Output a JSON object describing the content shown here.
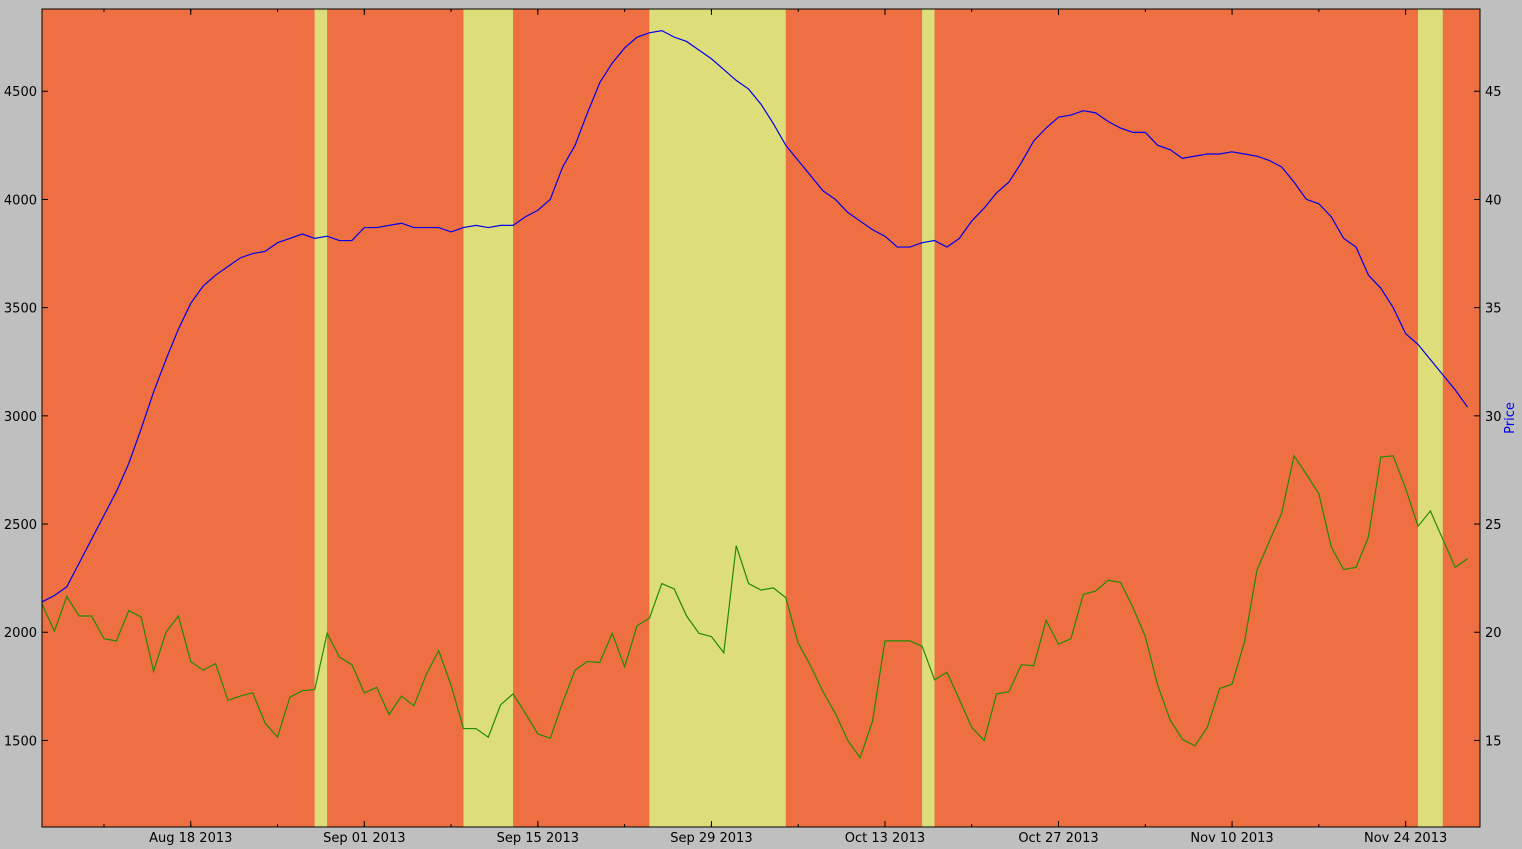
{
  "chart_data": {
    "type": "line",
    "title": "",
    "xlabel": "",
    "ylabel_left": "",
    "ylabel_right": "Price",
    "background_color": "#bfbfbf",
    "plot_border_color": "#000000",
    "grid": false,
    "legend": "none",
    "x_range": [
      "2013-08-06",
      "2013-11-30"
    ],
    "ylim_left": [
      1100,
      4880
    ],
    "ylim_right": [
      11,
      48.8
    ],
    "x_tick_labels": [
      "Aug 18 2013",
      "Sep 01 2013",
      "Sep 15 2013",
      "Sep 29 2013",
      "Oct 13 2013",
      "Oct 27 2013",
      "Nov 10 2013",
      "Nov 24 2013"
    ],
    "x_tick_dates": [
      "2013-08-18",
      "2013-09-01",
      "2013-09-15",
      "2013-09-29",
      "2013-10-13",
      "2013-10-27",
      "2013-11-10",
      "2013-11-24"
    ],
    "y_left_ticks": [
      1500,
      2000,
      2500,
      3000,
      3500,
      4000,
      4500
    ],
    "y_right_ticks": [
      15,
      20,
      25,
      30,
      35,
      40,
      45
    ],
    "y_left_tick_labels": [
      "1500",
      "2000",
      "2500",
      "3000",
      "3500",
      "4000",
      "4500"
    ],
    "y_right_tick_labels": [
      "15",
      "20",
      "25",
      "30",
      "35",
      "40",
      "45"
    ],
    "regions": [
      {
        "state": "down",
        "color": "#ee6f41",
        "start": "2013-08-06",
        "end": "2013-08-28"
      },
      {
        "state": "up",
        "color": "#dddd7a",
        "start": "2013-08-28",
        "end": "2013-08-29"
      },
      {
        "state": "down",
        "color": "#ee6f41",
        "start": "2013-08-29",
        "end": "2013-09-09"
      },
      {
        "state": "up",
        "color": "#dddd7a",
        "start": "2013-09-09",
        "end": "2013-09-13"
      },
      {
        "state": "down",
        "color": "#ee6f41",
        "start": "2013-09-13",
        "end": "2013-09-24"
      },
      {
        "state": "up",
        "color": "#dddd7a",
        "start": "2013-09-24",
        "end": "2013-10-05"
      },
      {
        "state": "down",
        "color": "#ee6f41",
        "start": "2013-10-05",
        "end": "2013-10-16"
      },
      {
        "state": "up",
        "color": "#dddd7a",
        "start": "2013-10-16",
        "end": "2013-10-17"
      },
      {
        "state": "down",
        "color": "#ee6f41",
        "start": "2013-10-17",
        "end": "2013-11-25"
      },
      {
        "state": "up",
        "color": "#dddd7a",
        "start": "2013-11-25",
        "end": "2013-11-27"
      },
      {
        "state": "down",
        "color": "#ee6f41",
        "start": "2013-11-27",
        "end": "2013-11-30"
      }
    ],
    "series": [
      {
        "axis": "right",
        "color": "#0000ee",
        "start": "2013-08-06",
        "step_days": 1,
        "values": [
          21.4,
          21.7,
          22.1,
          23.2,
          24.3,
          25.4,
          26.5,
          27.8,
          29.4,
          31.1,
          32.6,
          34.0,
          35.2,
          36.0,
          36.5,
          36.9,
          37.3,
          37.5,
          37.6,
          38.0,
          38.2,
          38.4,
          38.2,
          38.3,
          38.1,
          38.1,
          38.7,
          38.7,
          38.8,
          38.9,
          38.7,
          38.7,
          38.7,
          38.5,
          38.7,
          38.8,
          38.7,
          38.8,
          38.8,
          39.2,
          39.5,
          40.0,
          41.5,
          42.5,
          44.0,
          45.4,
          46.3,
          47.0,
          47.5,
          47.7,
          47.8,
          47.5,
          47.3,
          46.9,
          46.5,
          46.0,
          45.5,
          45.1,
          44.4,
          43.5,
          42.5,
          41.8,
          41.1,
          40.4,
          40.0,
          39.4,
          39.0,
          38.6,
          38.3,
          37.8,
          37.8,
          38.0,
          38.1,
          37.8,
          38.2,
          39.0,
          39.6,
          40.3,
          40.8,
          41.7,
          42.7,
          43.3,
          43.8,
          43.9,
          44.1,
          44.0,
          43.6,
          43.3,
          43.1,
          43.1,
          42.5,
          42.3,
          41.9,
          42.0,
          42.1,
          42.1,
          42.2,
          42.1,
          42.0,
          41.8,
          41.5,
          40.8,
          40.0,
          39.8,
          39.2,
          38.2,
          37.8,
          36.5,
          35.9,
          35.0,
          33.8,
          33.3,
          32.6,
          31.9,
          31.2,
          30.4
        ]
      },
      {
        "axis": "left",
        "color": "#228b00",
        "start": "2013-08-06",
        "step_days": 1,
        "values": [
          2130,
          2005,
          2165,
          2075,
          2075,
          1970,
          1960,
          2100,
          2070,
          1820,
          2000,
          2075,
          1865,
          1825,
          1855,
          1685,
          1705,
          1720,
          1580,
          1515,
          1700,
          1730,
          1735,
          1995,
          1885,
          1850,
          1720,
          1745,
          1620,
          1705,
          1660,
          1805,
          1915,
          1755,
          1555,
          1555,
          1515,
          1665,
          1715,
          1625,
          1530,
          1510,
          1675,
          1825,
          1865,
          1860,
          1995,
          1840,
          2030,
          2065,
          2225,
          2200,
          2075,
          1995,
          1980,
          1905,
          2400,
          2225,
          2195,
          2205,
          2160,
          1950,
          1845,
          1725,
          1625,
          1500,
          1420,
          1590,
          1960,
          1960,
          1960,
          1935,
          1780,
          1815,
          1690,
          1560,
          1500,
          1715,
          1725,
          1850,
          1845,
          2055,
          1945,
          1970,
          2175,
          2190,
          2240,
          2230,
          2115,
          1980,
          1755,
          1595,
          1505,
          1475,
          1560,
          1740,
          1760,
          1955,
          2285,
          2420,
          2550,
          2815,
          2730,
          2640,
          2395,
          2290,
          2300,
          2440,
          2810,
          2815,
          2665,
          2490,
          2560,
          2430,
          2300,
          2340
        ]
      }
    ]
  }
}
